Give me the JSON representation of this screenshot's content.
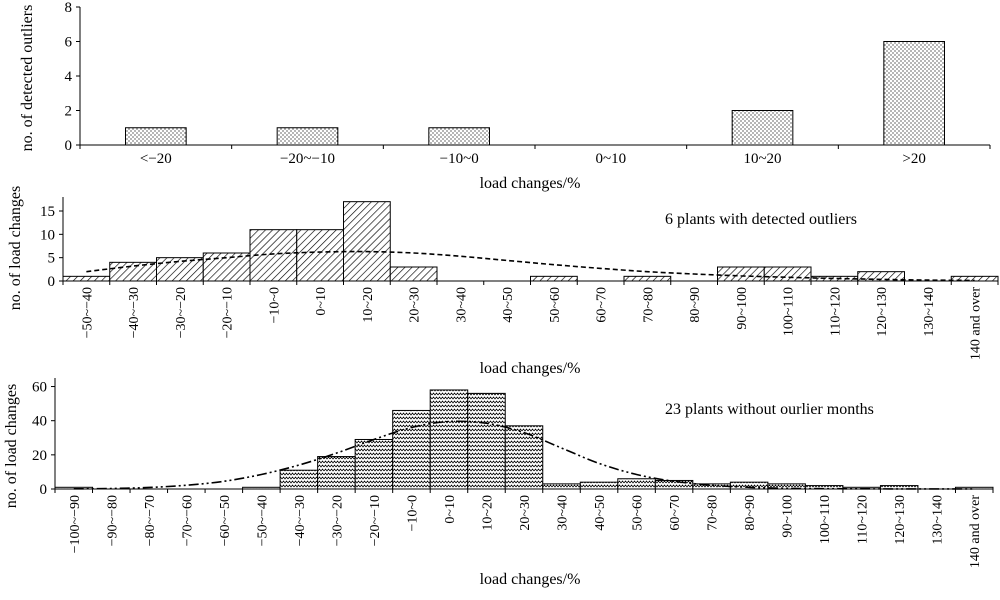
{
  "colors": {
    "ink": "#000000",
    "bar_fill": "#ffffff"
  },
  "chart_data": [
    {
      "type": "bar",
      "title": "",
      "ylabel": "no. of detected outliers",
      "xlabel": "load changes/%",
      "ylim": [
        0,
        8
      ],
      "yticks": [
        0,
        2,
        4,
        6,
        8
      ],
      "categories": [
        "<−20",
        "−20~−10",
        "−10~0",
        "0~10",
        "10~20",
        ">20"
      ],
      "values": [
        1,
        1,
        1,
        0,
        2,
        6
      ],
      "pattern": "dots",
      "grid": false
    },
    {
      "type": "bar",
      "title": "",
      "annotation": "6 plants with detected outliers",
      "ylabel": "no. of load changes",
      "xlabel": "load changes/%",
      "ylim": [
        0,
        18
      ],
      "yticks": [
        0,
        5,
        10,
        15
      ],
      "categories": [
        "−50~−40",
        "−40~−30",
        "−30~−20",
        "−20~−10",
        "−10~0",
        "0~10",
        "10~20",
        "20~30",
        "30~40",
        "40~50",
        "50~60",
        "60~70",
        "70~80",
        "80~90",
        "90~100",
        "100~110",
        "110~120",
        "120~130",
        "130~140",
        "140 and over"
      ],
      "values": [
        1,
        4,
        5,
        6,
        11,
        11,
        17,
        3,
        0,
        0,
        1,
        0,
        1,
        0,
        3,
        3,
        1,
        2,
        0,
        1
      ],
      "fit_curve": [
        2,
        3.2,
        4.2,
        5,
        5.8,
        6.2,
        6.3,
        6,
        5.3,
        4.4,
        3.5,
        2.7,
        2,
        1.5,
        1.1,
        0.8,
        0.55,
        0.35,
        0.2,
        0.12
      ],
      "fit_style": "dashed",
      "pattern": "hatch",
      "grid": false
    },
    {
      "type": "bar",
      "title": "",
      "annotation": "23 plants without ourlier months",
      "ylabel": "no. of load changes",
      "xlabel": "load changes/%",
      "ylim": [
        0,
        65
      ],
      "yticks": [
        0,
        20,
        40,
        60
      ],
      "categories": [
        "−100~−90",
        "−90~−80",
        "−80~−70",
        "−70~−60",
        "−60~−50",
        "−50~−40",
        "−40~−30",
        "−30~−20",
        "−20~−10",
        "−10~0",
        "0~10",
        "10~20",
        "20~30",
        "30~40",
        "40~50",
        "50~60",
        "60~70",
        "70~80",
        "80~90",
        "90~100",
        "100~110",
        "110~120",
        "120~130",
        "130~140",
        "140 and over"
      ],
      "values": [
        1,
        0,
        0,
        0,
        0,
        1,
        11,
        19,
        29,
        46,
        58,
        56,
        37,
        3,
        4,
        6,
        5,
        3,
        4,
        3,
        2,
        1,
        2,
        0,
        1
      ],
      "fit_curve": [
        0.1,
        0.3,
        0.9,
        2.2,
        4.5,
        8.5,
        14,
        21,
        29,
        36,
        39.5,
        38.5,
        33,
        24,
        15,
        8.5,
        4.5,
        2.2,
        1,
        0.4,
        0.2,
        0.1,
        0.05,
        0.02,
        0.01
      ],
      "fit_style": "dash-dot-dot",
      "pattern": "zigzag",
      "grid": false
    }
  ]
}
